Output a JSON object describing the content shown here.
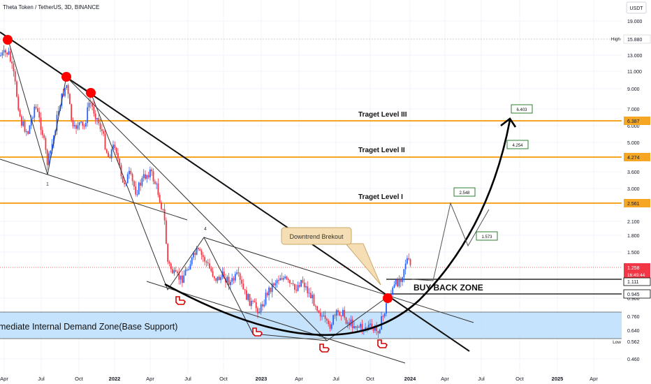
{
  "header": {
    "symbol_title": "Theta Token / TetherUS, 3D, BINANCE",
    "currency": "USDT"
  },
  "chart_data": {
    "type": "candlestick",
    "scale": "log",
    "ylim": [
      0.42,
      23
    ],
    "y_ticks": [
      "19.000",
      "13.000",
      "11.000",
      "9.000",
      "7.000",
      "6.000",
      "5.000",
      "3.600",
      "3.000",
      "2.100",
      "1.800",
      "1.500",
      "0.900",
      "0.760",
      "0.640",
      "0.460"
    ],
    "x_ticks": [
      "Apr",
      "Jul",
      "Oct",
      "2022",
      "Apr",
      "Jul",
      "Oct",
      "2023",
      "Apr",
      "Jul",
      "Oct",
      "2024",
      "Apr",
      "Jul",
      "Oct",
      "2025",
      "Apr"
    ],
    "price_labels": [
      {
        "label": "High",
        "value": "15.880"
      },
      {
        "label": "",
        "value": "6.387"
      },
      {
        "label": "",
        "value": "4.274"
      },
      {
        "label": "",
        "value": "2.561"
      },
      {
        "label": "",
        "value": "1.258"
      },
      {
        "label": "",
        "value": "16:49:44"
      },
      {
        "label": "",
        "value": "1.111"
      },
      {
        "label": "",
        "value": "0.945"
      },
      {
        "label": "Low",
        "value": "0.562"
      }
    ],
    "target_levels": [
      {
        "name": "Traget Level III",
        "value": 6.387,
        "color": "#f5a623"
      },
      {
        "name": "Traget Level II",
        "value": 4.274,
        "color": "#f5a623"
      },
      {
        "name": "Traget Level I",
        "value": 2.561,
        "color": "#f5a623"
      }
    ],
    "projection_labels": [
      "6.403",
      "4.254",
      "2.548",
      "1.573"
    ],
    "annotations": {
      "downtrend": "Downtrend Brekout",
      "buy_back": "BUY BACK ZONE",
      "demand_zone": "mediate Internal Demand Zone(Base Support)",
      "wave_1": "1",
      "wave_4": "4"
    },
    "colors": {
      "up": "#2962ff",
      "down": "#f23645",
      "target": "#f5a623",
      "zone": "#bbdefb",
      "marker": "#ff0000"
    }
  }
}
